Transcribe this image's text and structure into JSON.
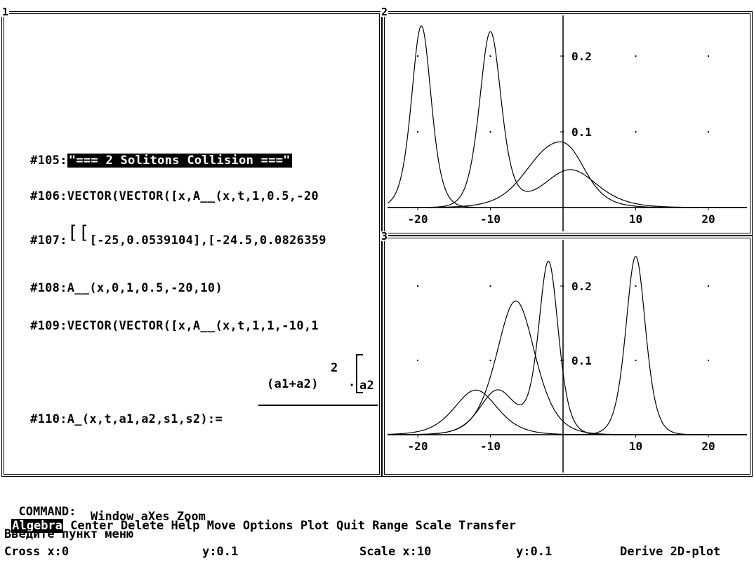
{
  "windows": {
    "w1_label": "1",
    "w2_label": "2",
    "w3_label": "3"
  },
  "algebra": [
    {
      "num": "#105:",
      "text": "\"=== 2 Solitons Collision ===\"",
      "highlight": true
    },
    {
      "num": "#106:",
      "text": "VECTOR(VECTOR([x,A__(x,t,1,0.5,-20"
    },
    {
      "num": "#107:",
      "text": "[-25,0.0539104],[-24.5,0.0826359"
    },
    {
      "num": "#108:",
      "text": "A__(x,0,1,0.5,-20,10)"
    },
    {
      "num": "#109:",
      "text": "VECTOR(VECTOR([x,A__(x,t,1,1,-10,1"
    },
    {
      "num": "#110:",
      "text": "A_(x,t,a1,a2,s1,s2):="
    },
    {
      "num_super": "2",
      "numerator": "(a1+a2)",
      "dot": "·",
      "bracket_tail": "a2"
    }
  ],
  "plot_top": {
    "xticks": [
      "-20",
      "-10",
      "10",
      "20"
    ],
    "yticks": [
      "0.2",
      "0.1"
    ]
  },
  "plot_bottom": {
    "xticks": [
      "-20",
      "-10",
      "10",
      "20"
    ],
    "yticks": [
      "0.2",
      "0.1"
    ]
  },
  "command": {
    "prefix": "COMMAND:",
    "items_row1": [
      "Algebra",
      "Center",
      "Delete",
      "Help",
      "Move",
      "Options",
      "Plot",
      "Quit",
      "Range",
      "Scale",
      "Transfer"
    ],
    "items_row2": [
      "Window",
      "aXes",
      "Zoom"
    ],
    "prompt": "Введите пункт меню"
  },
  "status": {
    "cross_x": "Cross x:0",
    "cross_y": "y:0.1",
    "scale_x": "Scale x:10",
    "scale_y": "y:0.1",
    "mode": "Derive 2D-plot"
  }
}
